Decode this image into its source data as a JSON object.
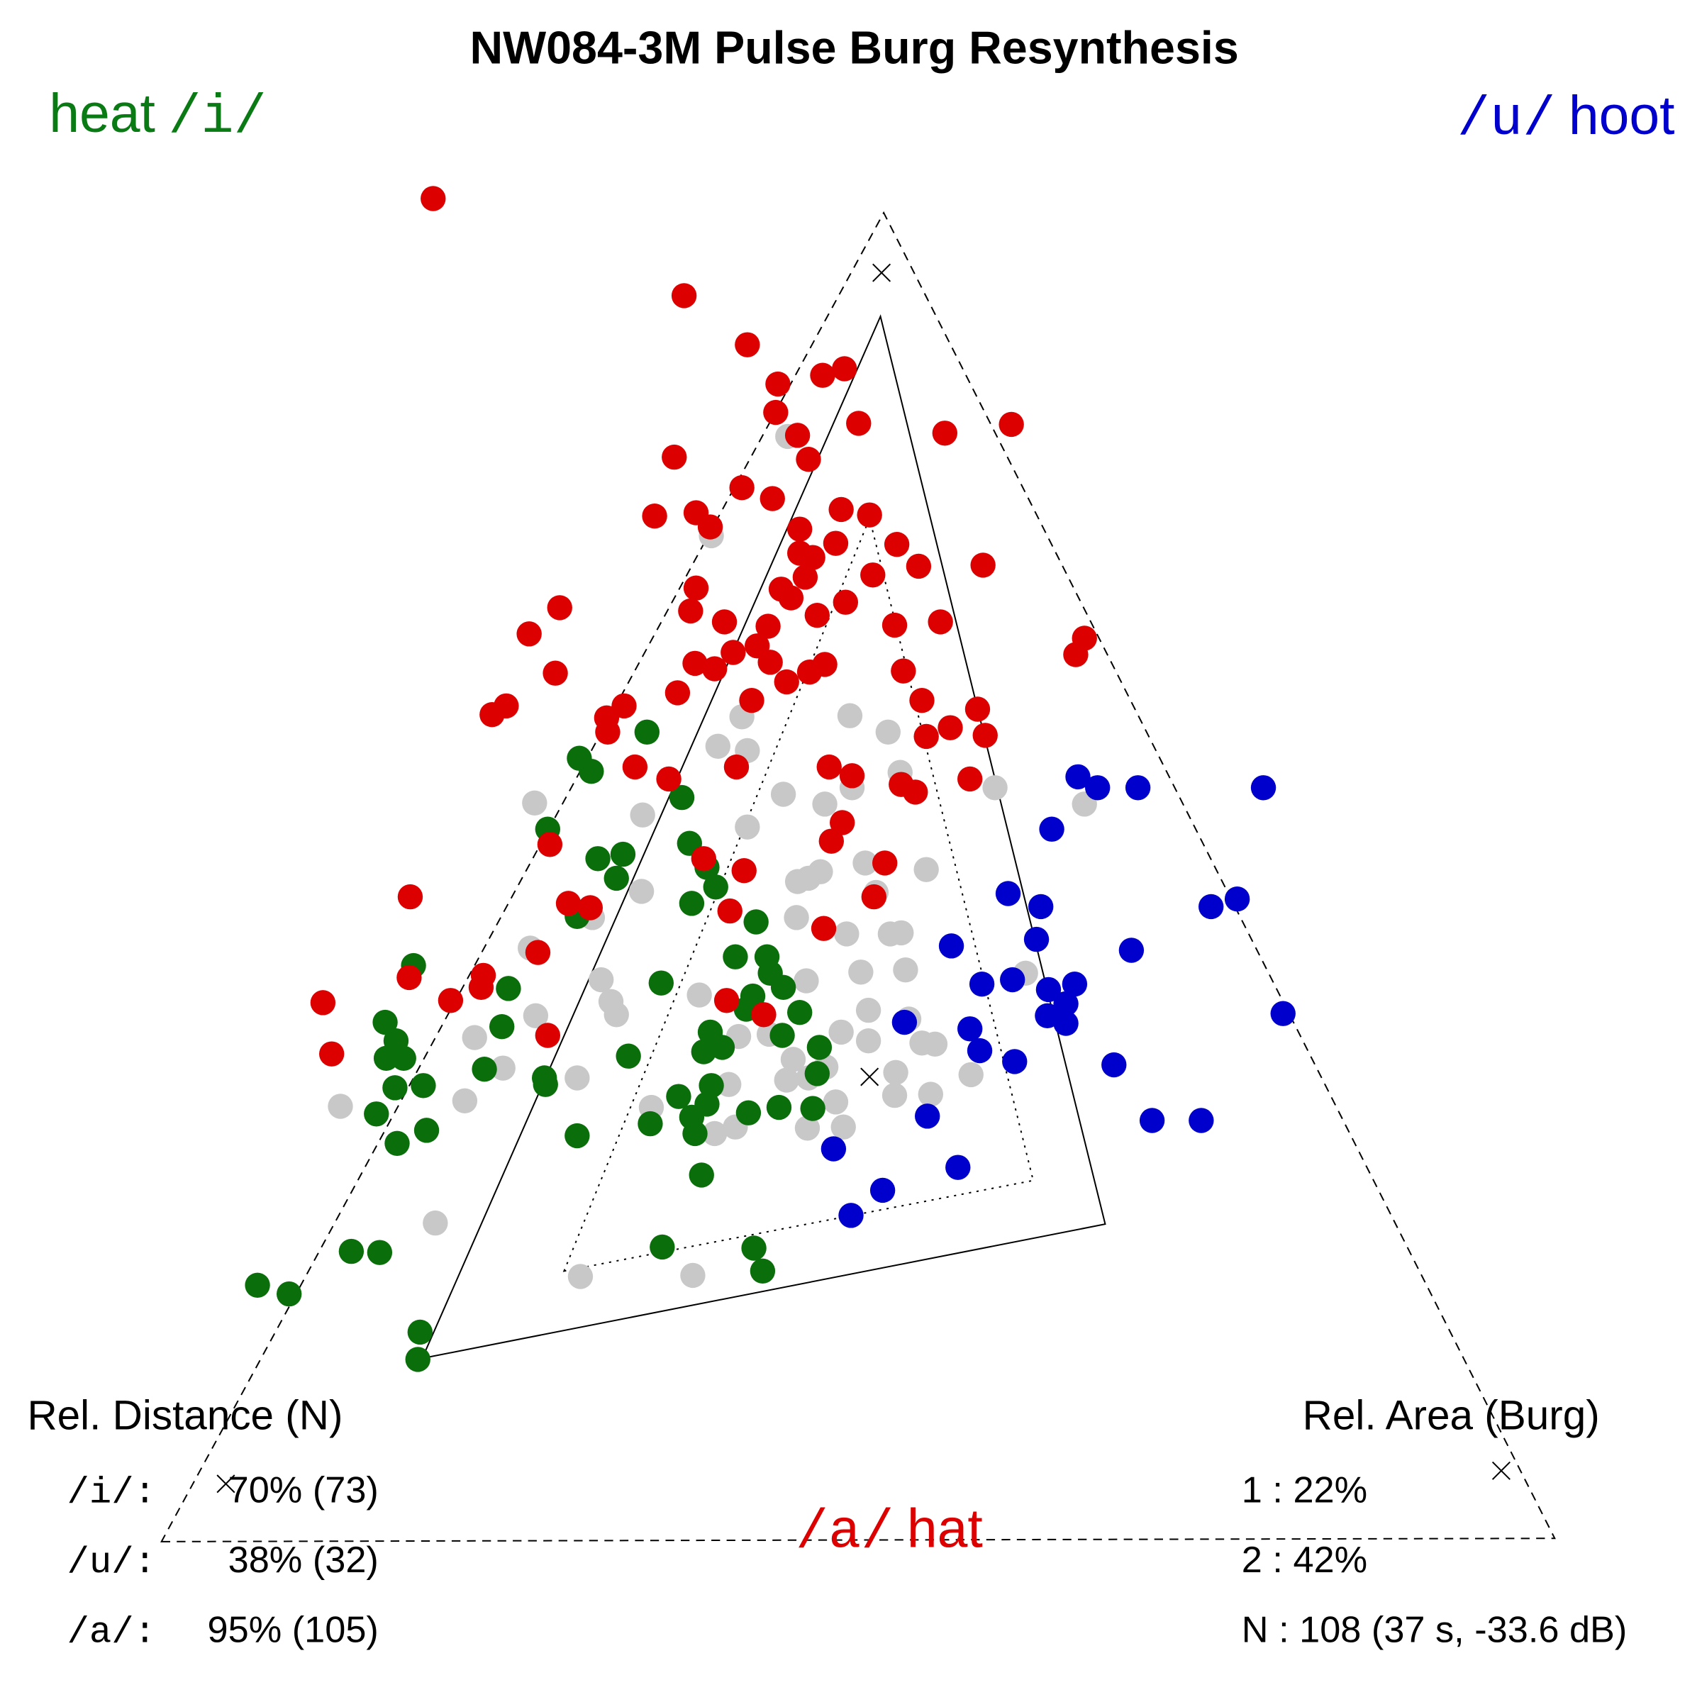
{
  "chart_data": {
    "type": "scatter",
    "title": "NW084-3M Pulse Burg Resynthesis",
    "xlim": [
      0,
      1560
    ],
    "ylim": [
      1560,
      0
    ],
    "vowels": [
      {
        "word": "heat",
        "symbol": "/i/",
        "color": "#0a7a14"
      },
      {
        "word": "hoot",
        "symbol": "/u/",
        "color": "#0000cc"
      },
      {
        "word": "hat",
        "symbol": "/a/",
        "color": "#dd0000"
      }
    ],
    "distance": {
      "title": "Rel. Distance (N)",
      "rows": [
        [
          "/i/:",
          "70% (73)"
        ],
        [
          "/u/:",
          "38% (32)"
        ],
        [
          "/a/:",
          "95% (105)"
        ]
      ]
    },
    "area": {
      "title": "Rel. Area (Burg)",
      "rows": [
        "1 : 22%",
        "2 : 42%",
        "N : 108 (37 s, -33.6 dB)"
      ]
    },
    "triangles": [
      {
        "x": [
          148,
          1425,
          810
        ],
        "y": [
          147,
          150,
          1365
        ],
        "dash": "8,6"
      },
      {
        "x": [
          387,
          1013,
          807
        ],
        "y": [
          315,
          438,
          1270
        ],
        "dash": "none"
      },
      {
        "x": [
          517,
          947,
          797
        ],
        "y": [
          395,
          478,
          1085
        ],
        "dash": "2,5"
      }
    ],
    "markers": {
      "x": [
        207,
        1376,
        797,
        808
      ],
      "y": [
        200,
        212,
        573,
        1310
      ]
    },
    "series": [
      {
        "color": "#c8c8c8",
        "x": [
          532,
          635,
          399,
          312,
          426,
          461,
          435,
          491,
          529,
          565,
          560,
          551,
          486,
          543,
          588,
          589,
          490,
          597,
          655,
          674,
          740,
          773,
          766,
          820,
          853,
          668,
          721,
          727,
          741,
          757,
          677,
          705,
          771,
          796,
          796,
          821,
          833,
          845,
          857,
          890,
          641,
          739,
          789,
          830,
          826,
          816,
          776,
          730,
          803,
          731,
          741,
          752,
          793,
          849,
          685,
          718,
          756,
          781,
          825,
          912,
          994,
          940,
          814,
          779,
          658,
          685,
          680,
          652,
          722
        ],
        "values": [
          390,
          391,
          439,
          546,
          551,
          581,
          609,
          629,
          572,
          630,
          642,
          662,
          691,
          719,
          743,
          813,
          824,
          545,
          521,
          527,
          526,
          527,
          550,
          556,
          557,
          566,
          570,
          589,
          572,
          582,
          610,
          612,
          614,
          606,
          634,
          577,
          626,
          604,
          603,
          575,
          648,
          661,
          669,
          671,
          705,
          704,
          704,
          719,
          742,
          752,
          755,
          761,
          769,
          763,
          802,
          832,
          823,
          838,
          852,
          838,
          823,
          668,
          889,
          904,
          876,
          872,
          903,
          1069,
          1160
        ]
      },
      {
        "color": "#0a6e0a",
        "x": [
          383,
          385,
          236,
          265,
          322,
          348,
          607,
          691,
          699,
          364,
          391,
          345,
          362,
          388,
          354,
          370,
          363,
          353,
          379,
          444,
          460,
          466,
          499,
          500,
          529,
          576,
          596,
          606,
          637,
          643,
          634,
          648,
          622,
          652,
          686,
          714,
          745,
          749,
          751,
          645,
          662,
          651,
          717,
          733,
          684,
          690,
          718,
          706,
          674,
          703,
          693,
          634,
          656,
          648,
          632,
          625,
          565,
          548,
          571,
          502,
          529,
          531,
          542,
          593
        ],
        "values": [
          314,
          339,
          382,
          374,
          413,
          412,
          417,
          416,
          395,
          512,
          524,
          539,
          563,
          565,
          590,
          590,
          606,
          623,
          675,
          580,
          619,
          654,
          572,
          566,
          519,
          592,
          530,
          659,
          521,
          483,
          536,
          548,
          555,
          565,
          540,
          545,
          544,
          576,
          600,
          596,
          600,
          614,
          611,
          632,
          635,
          647,
          655,
          668,
          683,
          683,
          715,
          732,
          747,
          765,
          787,
          829,
          755,
          773,
          777,
          800,
          720,
          865,
          853,
          889
        ]
      },
      {
        "color": "#0000cc",
        "x": [
          780,
          809,
          878,
          764,
          850,
          1056,
          1101,
          930,
          1021,
          898,
          889,
          829,
          960,
          977,
          977,
          1176,
          900,
          928,
          961,
          985,
          1037,
          872,
          950,
          954,
          924,
          1110,
          1134,
          964,
          1006,
          988,
          1043,
          1158
        ],
        "values": [
          446,
          469,
          490,
          507,
          537,
          533,
          533,
          587,
          584,
          597,
          617,
          623,
          629,
          622,
          640,
          631,
          658,
          662,
          653,
          658,
          689,
          693,
          699,
          729,
          741,
          729,
          736,
          800,
          838,
          848,
          838,
          838
        ]
      },
      {
        "color": "#dd0000",
        "x": [
          304,
          296,
          375,
          413,
          441,
          443,
          376,
          502,
          493,
          700,
          666,
          755,
          669,
          521,
          541,
          682,
          801,
          811,
          645,
          504,
          762,
          772,
          826,
          839,
          889,
          781,
          760,
          582,
          613,
          675,
          849,
          871,
          903,
          896,
          451,
          464,
          557,
          556,
          572,
          621,
          689,
          509,
          485,
          513,
          637,
          655,
          672,
          694,
          706,
          721,
          742,
          756,
          828,
          845,
          986,
          994,
          704,
          664,
          633,
          638,
          749,
          775,
          820,
          862,
          716,
          725,
          738,
          800,
          842,
          901,
          733,
          745,
          766,
          733,
          822,
          797,
          771,
          600,
          638,
          651,
          708,
          680,
          618,
          741,
          731,
          866,
          927,
          787,
          711,
          713,
          754,
          774,
          685,
          627,
          397
        ],
        "values": [
          594,
          641,
          664,
          643,
          655,
          666,
          738,
          611,
          687,
          630,
          643,
          709,
          725,
          732,
          728,
          762,
          738,
          769,
          773,
          786,
          789,
          806,
          841,
          834,
          846,
          849,
          857,
          857,
          846,
          857,
          885,
          893,
          886,
          910,
          905,
          913,
          889,
          902,
          913,
          925,
          918,
          943,
          979,
          1003,
          952,
          947,
          962,
          968,
          953,
          935,
          944,
          951,
          945,
          918,
          960,
          975,
          986,
          990,
          1000,
          1021,
          996,
          1008,
          987,
          990,
          1020,
          1012,
          1031,
          1033,
          1041,
          1042,
          1053,
          1049,
          1062,
          1075,
          1061,
          1088,
          1093,
          1087,
          1090,
          1077,
          1103,
          1113,
          1141,
          1139,
          1161,
          1163,
          1171,
          1172,
          1182,
          1208,
          1216,
          1222,
          1244,
          1289,
          1378
        ]
      }
    ]
  }
}
